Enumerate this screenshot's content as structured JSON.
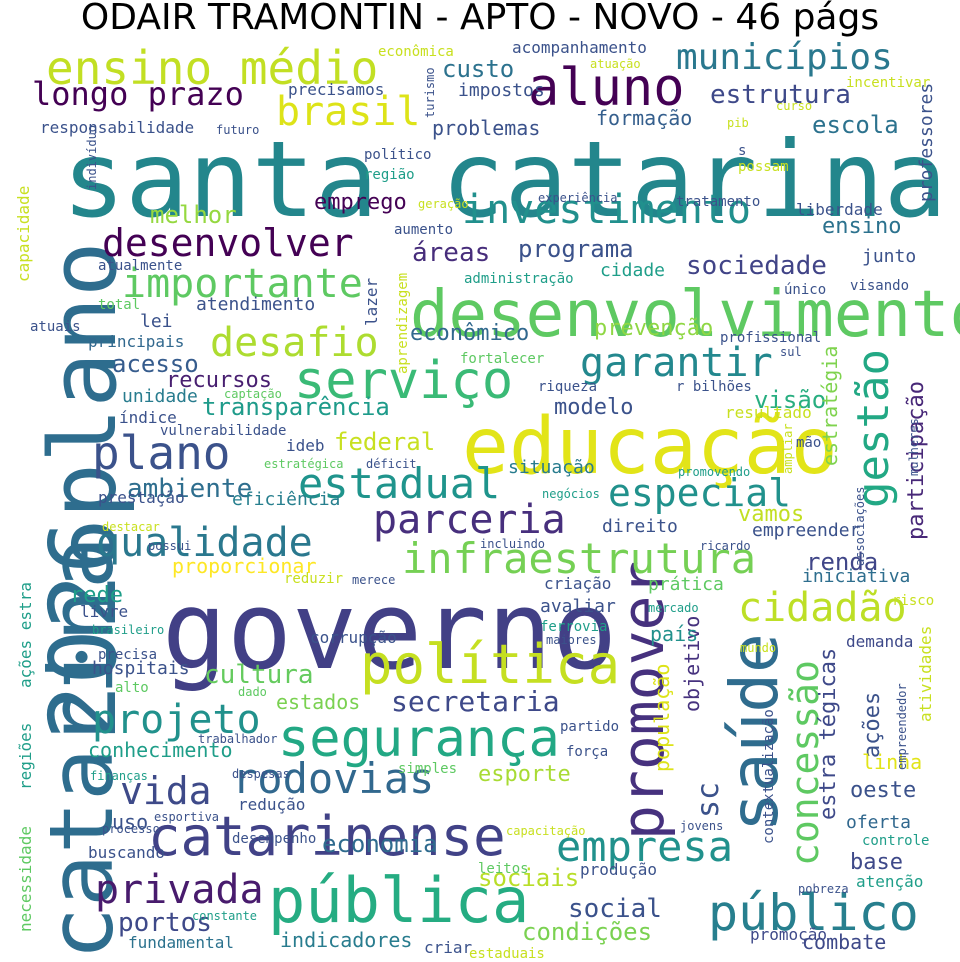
{
  "title": "ODAIR TRAMONTIN - APTO - NOVO - 46 págs",
  "words": [
    {
      "t": "santa catarina",
      "c": "#23868c"
    },
    {
      "t": "governo",
      "c": "#424086"
    },
    {
      "t": "2026plano",
      "c": "#2e6d8e"
    },
    {
      "t": "catarina",
      "c": "#2e6d8e"
    },
    {
      "t": "educação",
      "c": "#e2e418"
    },
    {
      "t": "desenvolvimento",
      "c": "#5ec962"
    },
    {
      "t": "política",
      "c": "#c5df21"
    },
    {
      "t": "pública",
      "c": "#25ac82"
    },
    {
      "t": "catarinense",
      "c": "#414287"
    },
    {
      "t": "saúde",
      "c": "#2f6c8e"
    },
    {
      "t": "promover",
      "c": "#46317e"
    },
    {
      "t": "público",
      "c": "#277f8e"
    },
    {
      "t": "segurança",
      "c": "#22a884"
    },
    {
      "t": "serviço",
      "c": "#3aba76"
    },
    {
      "t": "aluno",
      "c": "#440154"
    },
    {
      "t": "ensino médio",
      "c": "#c2df23"
    },
    {
      "t": "municípios",
      "c": "#2a788e"
    },
    {
      "t": "investimento",
      "c": "#21908d"
    },
    {
      "t": "desenvolver",
      "c": "#440154"
    },
    {
      "t": "importante",
      "c": "#5ec962"
    },
    {
      "t": "infraestrutura",
      "c": "#75d054"
    },
    {
      "t": "plano",
      "c": "#3b528b"
    },
    {
      "t": "estadual",
      "c": "#1f948c"
    },
    {
      "t": "parceria",
      "c": "#472f7d"
    },
    {
      "t": "qualidade",
      "c": "#2a788e"
    },
    {
      "t": "empresa",
      "c": "#21918c"
    },
    {
      "t": "rodovias",
      "c": "#31688e"
    },
    {
      "t": "privada",
      "c": "#481b6d"
    },
    {
      "t": "projeto",
      "c": "#21918c"
    },
    {
      "t": "cidadão",
      "c": "#bddf26"
    },
    {
      "t": "gestão",
      "c": "#22a884"
    },
    {
      "t": "concessão",
      "c": "#5ec962"
    },
    {
      "t": "especial",
      "c": "#21918c"
    },
    {
      "t": "desafio",
      "c": "#addc30"
    },
    {
      "t": "garantir",
      "c": "#23888e"
    },
    {
      "t": "brasil",
      "c": "#dde318"
    },
    {
      "t": "longo prazo",
      "c": "#440154"
    },
    {
      "t": "vida",
      "c": "#3e4a89"
    },
    {
      "t": "secretaria",
      "c": "#3e4989"
    },
    {
      "t": "cultura",
      "c": "#65cb5e"
    },
    {
      "t": "ambiente",
      "c": "#2e6e8e"
    },
    {
      "t": "social",
      "c": "#3b528b"
    },
    {
      "t": "condições",
      "c": "#7ad151"
    },
    {
      "t": "portos",
      "c": "#3e4989"
    },
    {
      "t": "sociais",
      "c": "#b8de29"
    },
    {
      "t": "economia",
      "c": "#2f6b8e"
    },
    {
      "t": "sociedade",
      "c": "#414487"
    },
    {
      "t": "programa",
      "c": "#3b528b"
    },
    {
      "t": "estrutura",
      "c": "#3e4989"
    },
    {
      "t": "custo",
      "c": "#2c728e"
    },
    {
      "t": "escola",
      "c": "#2c728e"
    },
    {
      "t": "esporte",
      "c": "#a8db34"
    },
    {
      "t": "renda",
      "c": "#404688"
    },
    {
      "t": "transparência",
      "c": "#1e9b8a"
    },
    {
      "t": "federal",
      "c": "#c8e020"
    },
    {
      "t": "acesso",
      "c": "#365c8d"
    },
    {
      "t": "melhor",
      "c": "#95d840"
    },
    {
      "t": "emprego",
      "c": "#440154"
    },
    {
      "t": "ensino",
      "c": "#2c728e"
    },
    {
      "t": "áreas",
      "c": "#472d7b"
    },
    {
      "t": "formação",
      "c": "#355f8d"
    },
    {
      "t": "problemas",
      "c": "#3b528b"
    },
    {
      "t": "participação",
      "c": "#482878"
    },
    {
      "t": "visão",
      "c": "#28ae80"
    },
    {
      "t": "modelo",
      "c": "#3b528b"
    },
    {
      "t": "recursos",
      "c": "#481f70"
    },
    {
      "t": "econômico",
      "c": "#31688e"
    },
    {
      "t": "prevenção",
      "c": "#8fd744"
    },
    {
      "t": "lei",
      "c": "#3b528b"
    },
    {
      "t": "atendimento",
      "c": "#3b528b"
    },
    {
      "t": "situação",
      "c": "#287c8e"
    },
    {
      "t": "vamos",
      "c": "#c2df23"
    },
    {
      "t": "direito",
      "c": "#3b528b"
    },
    {
      "t": "eficiência",
      "c": "#277f8e"
    },
    {
      "t": "prestação",
      "c": "#3b528b"
    },
    {
      "t": "proporcionar",
      "c": "#fde725"
    },
    {
      "t": "ações",
      "c": "#3b528b"
    },
    {
      "t": "população",
      "c": "#dde318"
    },
    {
      "t": "objetivo",
      "c": "#46327e"
    },
    {
      "t": "sc",
      "c": "#3b528b"
    },
    {
      "t": "estratégia",
      "c": "#7fd34e"
    },
    {
      "t": "estra tégicas",
      "c": "#3e4989"
    },
    {
      "t": "oeste",
      "c": "#3b528b"
    },
    {
      "t": "base",
      "c": "#3e4989"
    },
    {
      "t": "linha",
      "c": "#e2e418"
    },
    {
      "t": "iniciativa",
      "c": "#2e6e8e"
    },
    {
      "t": "demanda",
      "c": "#3e4989"
    },
    {
      "t": "oferta",
      "c": "#31688e"
    },
    {
      "t": "controle",
      "c": "#1f9e89"
    },
    {
      "t": "atenção",
      "c": "#1f9e89"
    },
    {
      "t": "combate",
      "c": "#3e4989"
    },
    {
      "t": "promoção",
      "c": "#3e4989"
    },
    {
      "t": "indicadores",
      "c": "#287c8e"
    },
    {
      "t": "fundamental",
      "c": "#2c728e"
    },
    {
      "t": "buscando",
      "c": "#3b528b"
    },
    {
      "t": "uso",
      "c": "#3b528b"
    },
    {
      "t": "redução",
      "c": "#3b528b"
    },
    {
      "t": "conhecimento",
      "c": "#1f9e89"
    },
    {
      "t": "hospitais",
      "c": "#3b528b"
    },
    {
      "t": "alto",
      "c": "#5ec962"
    },
    {
      "t": "estados",
      "c": "#7ad151"
    },
    {
      "t": "corrupção",
      "c": "#3b528b"
    },
    {
      "t": "rede",
      "c": "#1f9e89"
    },
    {
      "t": "livre",
      "c": "#3b528b"
    },
    {
      "t": "país",
      "c": "#21918c"
    },
    {
      "t": "prática",
      "c": "#5ec962"
    },
    {
      "t": "criação",
      "c": "#3b528b"
    },
    {
      "t": "avaliar",
      "c": "#3b528b"
    },
    {
      "t": "ferrovia",
      "c": "#1f9e89"
    },
    {
      "t": "empreender",
      "c": "#3b528b"
    },
    {
      "t": "lazer",
      "c": "#3b528b"
    },
    {
      "t": "cidade",
      "c": "#1f9e89"
    },
    {
      "t": "junto",
      "c": "#3b528b"
    },
    {
      "t": "acompanhamento",
      "c": "#3b528b"
    },
    {
      "t": "impostos",
      "c": "#3b528b"
    },
    {
      "t": "precisamos",
      "c": "#3b528b"
    },
    {
      "t": "responsabilidade",
      "c": "#3b528b"
    },
    {
      "t": "unidade",
      "c": "#287c8e"
    },
    {
      "t": "índice",
      "c": "#3b528b"
    },
    {
      "t": "ideb",
      "c": "#3b528b"
    },
    {
      "t": "principais",
      "c": "#31688e"
    },
    {
      "t": "atuais",
      "c": "#3b528b"
    },
    {
      "t": "total",
      "c": "#5ec962"
    },
    {
      "t": "atualmente",
      "c": "#3b528b"
    },
    {
      "t": "capacidade",
      "c": "#c8e020"
    },
    {
      "t": "indivíduo",
      "c": "#3b528b"
    },
    {
      "t": "político",
      "c": "#3b528b"
    },
    {
      "t": "região",
      "c": "#1f9e89"
    },
    {
      "t": "geração",
      "c": "#c8e020"
    },
    {
      "t": "experiência",
      "c": "#3b528b"
    },
    {
      "t": "tratamento",
      "c": "#3b528b"
    },
    {
      "t": "liberdade",
      "c": "#3b528b"
    },
    {
      "t": "aumento",
      "c": "#3b528b"
    },
    {
      "t": "administração",
      "c": "#1f9e89"
    },
    {
      "t": "aprendizagem",
      "c": "#c8e020"
    },
    {
      "t": "fortalecer",
      "c": "#5ec962"
    },
    {
      "t": "riqueza",
      "c": "#3b528b"
    },
    {
      "t": "r bilhões",
      "c": "#3b528b"
    },
    {
      "t": "captação",
      "c": "#5ec962"
    },
    {
      "t": "resultado",
      "c": "#c8e020"
    },
    {
      "t": "vulnerabilidade",
      "c": "#3b528b"
    },
    {
      "t": "estratégica",
      "c": "#5ec962"
    },
    {
      "t": "déficit",
      "c": "#3b528b"
    },
    {
      "t": "mão",
      "c": "#3b528b"
    },
    {
      "t": "negócios",
      "c": "#1f9e89"
    },
    {
      "t": "promovendo",
      "c": "#1f9e89"
    },
    {
      "t": "incluindo",
      "c": "#3b528b"
    },
    {
      "t": "ricardo",
      "c": "#3b528b"
    },
    {
      "t": "possui",
      "c": "#3b528b"
    },
    {
      "t": "destacar",
      "c": "#c8e020"
    },
    {
      "t": "reduzir",
      "c": "#c8e020"
    },
    {
      "t": "merece",
      "c": "#3b528b"
    },
    {
      "t": "mercado",
      "c": "#1f9e89"
    },
    {
      "t": "risco",
      "c": "#c8e020"
    },
    {
      "t": "maiores",
      "c": "#3b528b"
    },
    {
      "t": "mundo",
      "c": "#c8e020"
    },
    {
      "t": "brasileiro",
      "c": "#1f9e89"
    },
    {
      "t": "precisa",
      "c": "#3b528b"
    },
    {
      "t": "dado",
      "c": "#5ec962"
    },
    {
      "t": "trabalhador",
      "c": "#3b528b"
    },
    {
      "t": "partido",
      "c": "#3b528b"
    },
    {
      "t": "força",
      "c": "#3b528b"
    },
    {
      "t": "simples",
      "c": "#5ec962"
    },
    {
      "t": "despesas",
      "c": "#3b528b"
    },
    {
      "t": "finanças",
      "c": "#1f9e89"
    },
    {
      "t": "esportiva",
      "c": "#3b528b"
    },
    {
      "t": "capacitação",
      "c": "#c8e020"
    },
    {
      "t": "jovens",
      "c": "#3b528b"
    },
    {
      "t": "leitos",
      "c": "#5ec962"
    },
    {
      "t": "produção",
      "c": "#3b528b"
    },
    {
      "t": "desempenho",
      "c": "#3b528b"
    },
    {
      "t": "processo",
      "c": "#3b528b"
    },
    {
      "t": "constante",
      "c": "#1f9e89"
    },
    {
      "t": "criar",
      "c": "#3b528b"
    },
    {
      "t": "estaduais",
      "c": "#c8e020"
    },
    {
      "t": "pobreza",
      "c": "#3b528b"
    },
    {
      "t": "necessidade",
      "c": "#5ec962"
    },
    {
      "t": "regiões",
      "c": "#1f9e89"
    },
    {
      "t": "ações estra",
      "c": "#1f9e89"
    },
    {
      "t": "contextualização",
      "c": "#3b528b"
    },
    {
      "t": "empreendedor",
      "c": "#3b528b"
    },
    {
      "t": "atividades",
      "c": "#c8e020"
    },
    {
      "t": "associações",
      "c": "#3b528b"
    },
    {
      "t": "mulheres",
      "c": "#3b528b"
    },
    {
      "t": "ampliar",
      "c": "#c8e020"
    },
    {
      "t": "professores",
      "c": "#3b528b"
    },
    {
      "t": "incentivar",
      "c": "#c8e020"
    },
    {
      "t": "curso",
      "c": "#c8e020"
    },
    {
      "t": "pib",
      "c": "#c8e020"
    },
    {
      "t": "possam",
      "c": "#c8e020"
    },
    {
      "t": "s",
      "c": "#3b528b"
    },
    {
      "t": "futuro",
      "c": "#3b528b"
    },
    {
      "t": "turismo",
      "c": "#3b528b"
    },
    {
      "t": "atuação",
      "c": "#c8e020"
    },
    {
      "t": "econômica",
      "c": "#c8e020"
    },
    {
      "t": "único",
      "c": "#3b528b"
    },
    {
      "t": "visando",
      "c": "#3b528b"
    },
    {
      "t": "profissional",
      "c": "#3b528b"
    },
    {
      "t": "sul",
      "c": "#3b528b"
    }
  ]
}
